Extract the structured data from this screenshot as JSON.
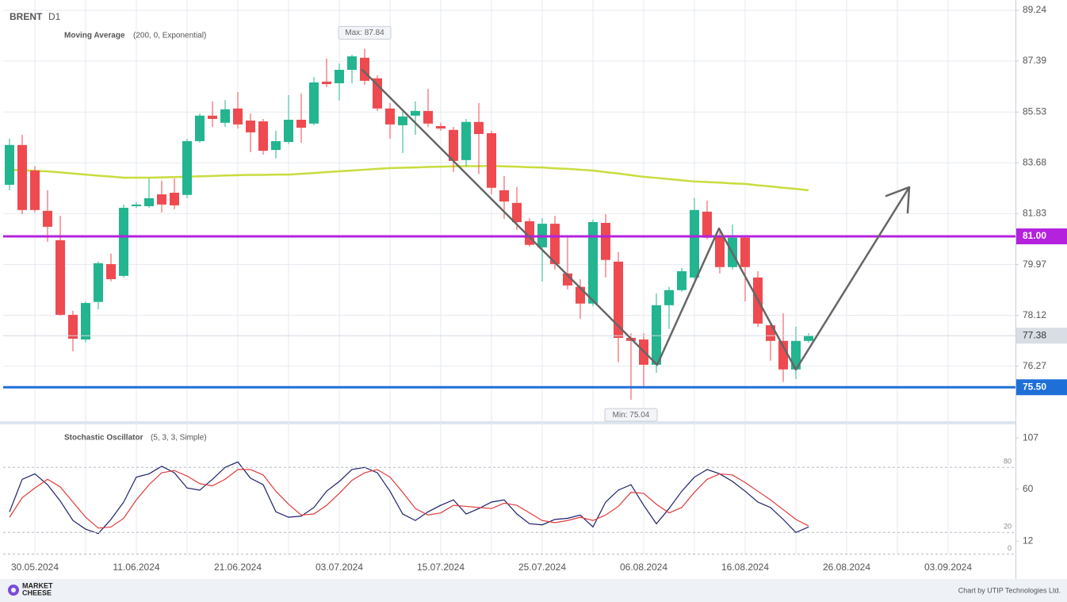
{
  "chart_data": [
    {
      "type": "candlestick",
      "title": "BRENT",
      "subtitle": "D1",
      "categories": [
        null,
        null,
        "30.05.2024",
        null,
        null,
        null,
        null,
        null,
        null,
        null,
        "11.06.2024",
        null,
        null,
        null,
        null,
        null,
        null,
        null,
        "21.06.2024",
        null,
        null,
        null,
        null,
        null,
        null,
        null,
        "03.07.2024",
        null,
        null,
        null,
        null,
        null,
        null,
        null,
        "15.07.2024",
        null,
        null,
        null,
        null,
        null,
        null,
        null,
        "25.07.2024",
        null,
        null,
        null,
        null,
        null,
        null,
        null,
        "06.08.2024",
        null,
        null,
        null,
        null,
        null,
        null,
        null,
        "16.08.2024",
        null,
        null,
        null,
        null,
        null,
        null,
        null,
        "26.08.2024",
        null,
        null,
        null,
        null,
        null,
        null,
        null,
        "03.09.2024"
      ],
      "open": [
        82.88,
        84.33,
        83.4,
        81.93,
        80.86,
        78.14,
        77.24,
        78.61,
        79.99,
        79.56,
        82.1,
        82.1,
        82.53,
        82.59,
        82.51,
        84.47,
        85.4,
        85.14,
        85.66,
        85.22,
        85.19,
        84.15,
        84.44,
        85.25,
        85.11,
        86.64,
        86.58,
        87.07,
        87.51,
        86.76,
        85.66,
        85.05,
        85.4,
        85.57,
        85.02,
        84.88,
        83.78,
        85.17,
        84.76,
        82.68,
        82.22,
        81.55,
        80.6,
        81.46,
        79.65,
        79.16,
        78.55,
        81.49,
        80.08,
        77.3,
        77.24,
        76.32,
        78.49,
        79.04,
        79.5,
        81.9,
        81.0,
        79.88,
        80.95,
        79.5,
        77.76,
        77.19,
        76.15,
        77.19,
        null,
        null,
        null,
        null,
        null,
        null,
        null,
        null,
        null,
        null,
        null
      ],
      "high": [
        84.56,
        84.7,
        83.55,
        82.68,
        81.75,
        78.29,
        78.63,
        80.08,
        80.37,
        82.16,
        82.25,
        83.11,
        83.03,
        83.11,
        84.56,
        85.48,
        85.92,
        85.97,
        86.26,
        85.48,
        85.28,
        84.85,
        86.15,
        86.21,
        86.81,
        87.48,
        87.3,
        87.62,
        87.84,
        86.87,
        85.86,
        85.63,
        85.92,
        86.38,
        85.14,
        84.99,
        85.28,
        85.86,
        84.85,
        83.2,
        82.8,
        81.67,
        81.67,
        81.75,
        80.95,
        79.44,
        81.61,
        81.81,
        80.43,
        77.47,
        77.47,
        78.92,
        79.16,
        79.85,
        82.39,
        82.3,
        81.17,
        81.43,
        81.03,
        79.73,
        77.91,
        78.2,
        77.71,
        77.47,
        null,
        null,
        null,
        null,
        null,
        null,
        null,
        null,
        null,
        null,
        null
      ],
      "low": [
        82.68,
        81.81,
        81.87,
        80.8,
        78.11,
        76.81,
        77.13,
        78.34,
        79.36,
        79.5,
        82.04,
        82.04,
        81.87,
        81.99,
        82.39,
        84.41,
        84.99,
        84.99,
        84.93,
        84.07,
        83.98,
        83.84,
        84.36,
        84.41,
        85.05,
        86.44,
        85.95,
        86.58,
        86.52,
        85.57,
        84.56,
        84.04,
        84.7,
        84.99,
        84.85,
        83.34,
        83.55,
        83.27,
        82.53,
        81.64,
        81.23,
        80.63,
        79.36,
        79.79,
        79.07,
        77.99,
        78.46,
        79.5,
        76.41,
        75.04,
        75.51,
        76.03,
        77.62,
        78.98,
        79.44,
        80.89,
        79.65,
        79.79,
        78.63,
        77.7,
        76.47,
        75.69,
        75.8,
        77.13,
        null,
        null,
        null,
        null,
        null,
        null,
        null,
        null,
        null,
        null,
        null
      ],
      "close": [
        84.33,
        81.96,
        81.96,
        81.35,
        78.14,
        77.27,
        78.57,
        80.02,
        79.44,
        82.04,
        82.16,
        82.39,
        82.16,
        82.13,
        84.47,
        85.4,
        85.28,
        85.63,
        85.08,
        84.79,
        84.12,
        84.47,
        85.25,
        84.96,
        86.61,
        86.55,
        87.07,
        87.56,
        86.67,
        85.66,
        85.08,
        85.37,
        85.57,
        85.11,
        84.93,
        83.75,
        85.17,
        84.73,
        82.77,
        82.27,
        81.52,
        80.69,
        81.46,
        79.99,
        79.21,
        78.55,
        81.52,
        80.14,
        77.3,
        77.19,
        76.32,
        78.49,
        79.04,
        79.73,
        81.96,
        80.95,
        79.88,
        80.95,
        79.88,
        77.82,
        77.19,
        76.15,
        77.19,
        77.38,
        null,
        null,
        null,
        null,
        null,
        null,
        null,
        null,
        null,
        null,
        null
      ],
      "up_color": "#22b58f",
      "down_color": "#ee4a4f",
      "series": [
        {
          "name": "Moving Average",
          "params": "(200, 0, Exponential)",
          "color": "#c9dc3e",
          "values": [
            83.43,
            83.41,
            83.39,
            83.37,
            83.33,
            83.29,
            83.25,
            83.21,
            83.18,
            83.14,
            83.14,
            83.14,
            83.15,
            83.16,
            83.17,
            83.19,
            83.2,
            83.22,
            83.23,
            83.24,
            83.24,
            83.25,
            83.25,
            83.28,
            83.31,
            83.34,
            83.37,
            83.4,
            83.43,
            83.46,
            83.49,
            83.5,
            83.51,
            83.53,
            83.54,
            83.55,
            83.56,
            83.56,
            83.57,
            83.55,
            83.54,
            83.52,
            83.51,
            83.48,
            83.46,
            83.43,
            83.4,
            83.34,
            83.29,
            83.23,
            83.17,
            83.13,
            83.09,
            83.04,
            83.0,
            82.98,
            82.96,
            82.93,
            82.91,
            82.86,
            82.82,
            82.77,
            82.73,
            82.68,
            null,
            null,
            null,
            null,
            null,
            null,
            null,
            null,
            null,
            null,
            null
          ]
        }
      ],
      "ylim": [
        74.38,
        89.47
      ],
      "yticks": [
        89.24,
        87.39,
        85.53,
        83.68,
        81.83,
        79.97,
        78.12,
        76.27
      ],
      "grid": true,
      "levels": [
        {
          "value": 81,
          "label": "81.00",
          "color": "#b422de"
        },
        {
          "value": 75.5,
          "label": "75.50",
          "color": "#1f6fd8"
        }
      ],
      "last_price": 77.38,
      "annotations": [
        "Max: 87.84",
        "Min: 75.04"
      ]
    },
    {
      "type": "line",
      "title": "Stochastic Oscillator",
      "params": "(5, 3, 3, Simple)",
      "series": [
        {
          "color": "#1c1f6b",
          "values": [
            39,
            69,
            74,
            64,
            49,
            31,
            23,
            19,
            32,
            48,
            71,
            74,
            81,
            75,
            61,
            59,
            69,
            80,
            85,
            70,
            64,
            39,
            34,
            35,
            43,
            58,
            67,
            78,
            80,
            75,
            58,
            37,
            31,
            39,
            45,
            50,
            37,
            42,
            48,
            50,
            37,
            28,
            27,
            32,
            33,
            36,
            25,
            48,
            59,
            64,
            45,
            28,
            42,
            58,
            71,
            78,
            74,
            67,
            58,
            48,
            43,
            32,
            20,
            25,
            null,
            null,
            null,
            null,
            null,
            null,
            null,
            null,
            null,
            null,
            null
          ]
        },
        {
          "color": "#e03a3a",
          "values": [
            34,
            52,
            61,
            69,
            62,
            48,
            34,
            24,
            25,
            33,
            50,
            64,
            75,
            77,
            72,
            65,
            63,
            69,
            78,
            78,
            73,
            58,
            46,
            36,
            37,
            45,
            56,
            68,
            75,
            78,
            71,
            57,
            42,
            36,
            38,
            45,
            44,
            43,
            42,
            47,
            45,
            38,
            31,
            29,
            31,
            34,
            31,
            36,
            44,
            57,
            56,
            46,
            38,
            43,
            57,
            69,
            74,
            73,
            66,
            58,
            50,
            41,
            32,
            26,
            null,
            null,
            null,
            null,
            null,
            null,
            null,
            null,
            null,
            null,
            null
          ]
        }
      ],
      "ylim": [
        -1,
        116
      ],
      "yticks": [
        107,
        60,
        12
      ],
      "grid": false,
      "levels": [
        80,
        20,
        0
      ]
    }
  ],
  "footer": {
    "logo": [
      "MARKET",
      "CHEESE"
    ],
    "credit": "Chart by UTIP Technologies Ltd."
  }
}
